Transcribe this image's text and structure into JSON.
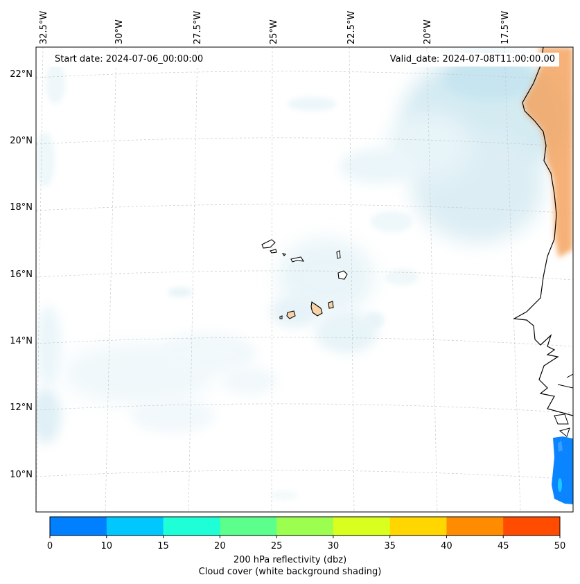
{
  "map": {
    "start_date_label": "Start date: 2024-07-06_00:00:00",
    "valid_date_label": "Valid_date: 2024-07-08T11:00:00.00",
    "lon_labels": [
      "32.5°W",
      "30°W",
      "27.5°W",
      "25°W",
      "22.5°W",
      "20°W",
      "17.5°W"
    ],
    "lat_labels": [
      "22°N",
      "20°N",
      "18°N",
      "16°N",
      "14°N",
      "12°N",
      "10°N"
    ],
    "cloud_color": "#add8e6",
    "land_highlight_color": "#f4a460",
    "reflectivity_patch_color": "#0a84ff"
  },
  "colorbar": {
    "tick_labels": [
      "0",
      "10",
      "15",
      "20",
      "25",
      "30",
      "35",
      "40",
      "45",
      "50"
    ],
    "colors": [
      "#0080ff",
      "#00c8ff",
      "#1effd8",
      "#5aff8c",
      "#9cff50",
      "#d8ff1e",
      "#ffd600",
      "#ff8c00",
      "#ff4c00"
    ],
    "label_line1": "200 hPa reflectivity (dbz)",
    "label_line2": "Cloud cover (white background shading)"
  }
}
